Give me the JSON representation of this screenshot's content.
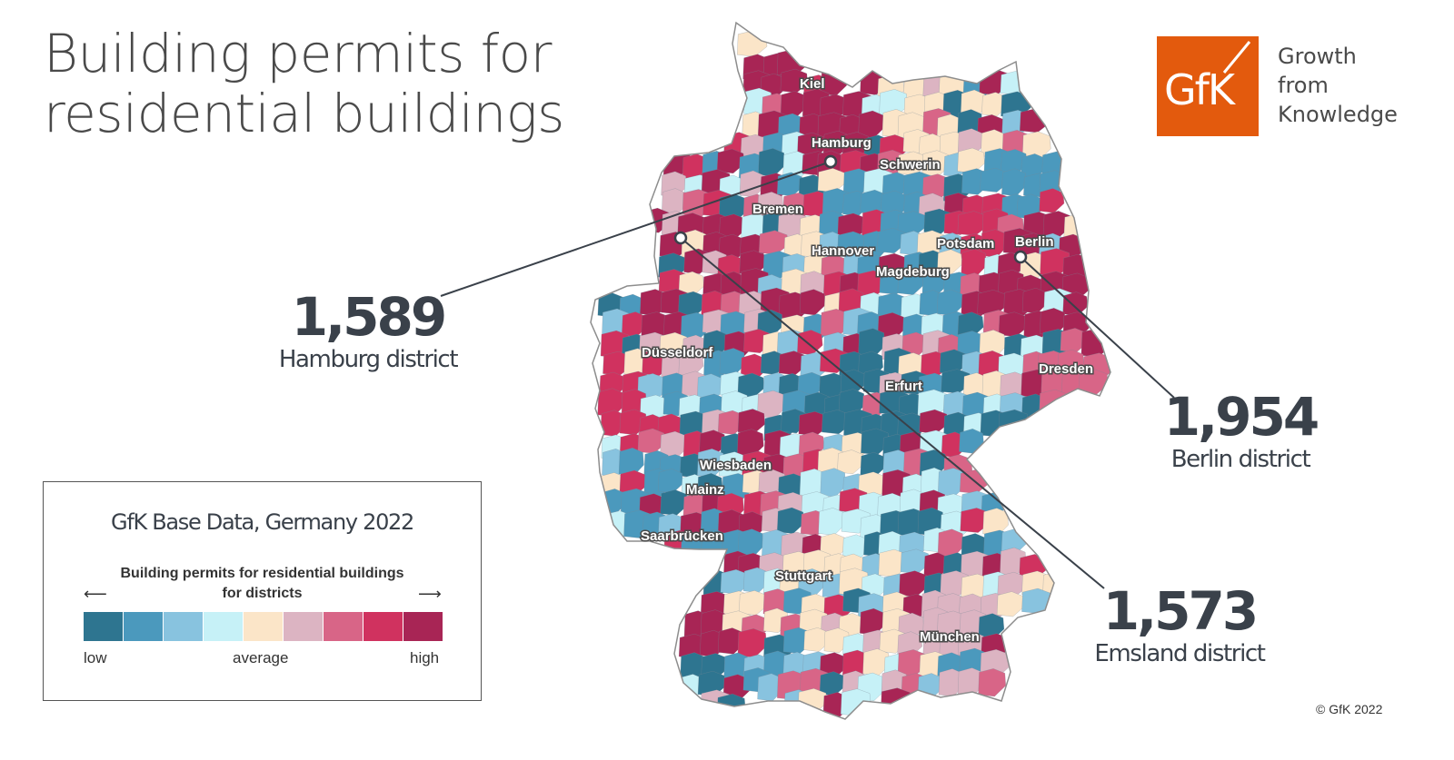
{
  "title": {
    "line1": "Building permits for",
    "line2": "residential buildings"
  },
  "logo": {
    "mark": "GfK",
    "tagline": [
      "Growth",
      "from",
      "Knowledge"
    ],
    "color": "#e35a0d"
  },
  "cities": [
    {
      "name": "Kiel"
    },
    {
      "name": "Hamburg"
    },
    {
      "name": "Schwerin"
    },
    {
      "name": "Bremen"
    },
    {
      "name": "Potsdam"
    },
    {
      "name": "Berlin"
    },
    {
      "name": "Hannover"
    },
    {
      "name": "Magdeburg"
    },
    {
      "name": "Düsseldorf"
    },
    {
      "name": "Dresden"
    },
    {
      "name": "Erfurt"
    },
    {
      "name": "Wiesbaden"
    },
    {
      "name": "Mainz"
    },
    {
      "name": "Saarbrücken"
    },
    {
      "name": "Stuttgart"
    },
    {
      "name": "München"
    }
  ],
  "callouts": [
    {
      "value": "1,589",
      "label": "Hamburg district"
    },
    {
      "value": "1,954",
      "label": "Berlin district"
    },
    {
      "value": "1,573",
      "label": "Emsland district"
    }
  ],
  "legend": {
    "title": "GfK Base Data, Germany 2022",
    "subtitle_line1": "Building permits for residential buildings",
    "subtitle_line2": "for districts",
    "low": "low",
    "average": "average",
    "high": "high",
    "colors": [
      "#2e7590",
      "#4b99bd",
      "#88c3df",
      "#c6f1f7",
      "#fbe5c8",
      "#dcb4c2",
      "#d86587",
      "#d0325f",
      "#a82555"
    ]
  },
  "copyright": "© GfK 2022"
}
